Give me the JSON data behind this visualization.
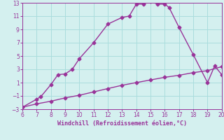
{
  "xlabel": "Windchill (Refroidissement éolien,°C)",
  "xlim": [
    6,
    20
  ],
  "ylim": [
    -3,
    13
  ],
  "xticks": [
    6,
    7,
    8,
    9,
    10,
    11,
    12,
    13,
    14,
    15,
    16,
    17,
    18,
    19,
    20
  ],
  "yticks": [
    -3,
    -1,
    1,
    3,
    5,
    7,
    9,
    11,
    13
  ],
  "line1_x": [
    6,
    7,
    7.3,
    8,
    8.5,
    9,
    9.5,
    10,
    11,
    12,
    13,
    13.5,
    14,
    14.5,
    15,
    15.5,
    16,
    16.3,
    17,
    18,
    19,
    19.5,
    20
  ],
  "line1_y": [
    -2.7,
    -1.5,
    -1.1,
    0.7,
    2.2,
    2.3,
    3.0,
    4.6,
    7.0,
    9.8,
    10.8,
    11.0,
    12.8,
    12.8,
    13.2,
    12.8,
    12.8,
    12.3,
    9.3,
    5.2,
    1.0,
    3.5,
    2.2
  ],
  "line2_x": [
    6,
    7,
    8,
    9,
    10,
    11,
    12,
    13,
    14,
    15,
    16,
    17,
    18,
    19,
    20
  ],
  "line2_y": [
    -2.7,
    -2.2,
    -1.8,
    -1.3,
    -0.9,
    -0.4,
    0.1,
    0.6,
    1.0,
    1.4,
    1.8,
    2.1,
    2.5,
    2.8,
    3.4
  ],
  "line_color": "#993399",
  "bg_color": "#d4f0ef",
  "grid_color": "#aadddd",
  "tick_color": "#993399",
  "label_color": "#993399",
  "marker": "D",
  "marker_size": 2.5,
  "line_width": 1.0
}
